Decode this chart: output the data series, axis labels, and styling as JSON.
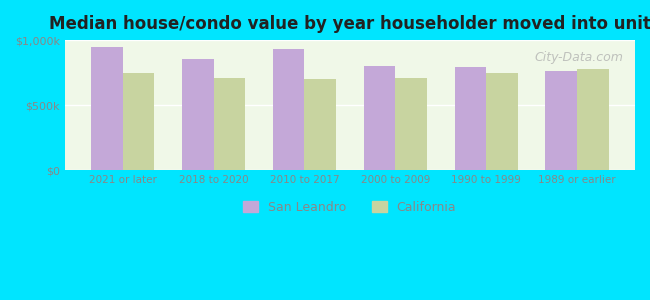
{
  "title": "Median house/condo value by year householder moved into unit",
  "categories": [
    "2021 or later",
    "2018 to 2020",
    "2010 to 2017",
    "2000 to 2009",
    "1990 to 1999",
    "1989 or earlier"
  ],
  "san_leandro": [
    950000,
    855000,
    930000,
    800000,
    795000,
    760000
  ],
  "california": [
    745000,
    710000,
    700000,
    710000,
    745000,
    775000
  ],
  "bar_color_sl": "#c4a8d8",
  "bar_color_ca": "#c8d4a0",
  "background_outer": "#00e5ff",
  "background_inner": "#f0f8e8",
  "ylim": [
    0,
    1000000
  ],
  "yticks": [
    0,
    500000,
    1000000
  ],
  "ytick_labels": [
    "$0",
    "$500k",
    "$1,000k"
  ],
  "legend_sl": "San Leandro",
  "legend_ca": "California",
  "watermark": "City-Data.com"
}
